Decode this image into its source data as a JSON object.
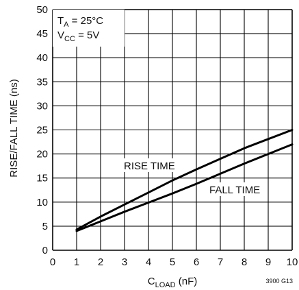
{
  "chart_data": {
    "type": "line",
    "title": "",
    "xlabel": {
      "main": "C",
      "sub": "LOAD",
      "rest": " (nF)"
    },
    "ylabel": "RISE/FALL TIME (ns)",
    "xlim": [
      0,
      10
    ],
    "ylim": [
      0,
      50
    ],
    "x_ticks": [
      "0",
      "1",
      "2",
      "3",
      "4",
      "5",
      "6",
      "7",
      "8",
      "9",
      "10"
    ],
    "y_ticks": [
      "0",
      "5",
      "10",
      "15",
      "20",
      "25",
      "30",
      "35",
      "40",
      "45",
      "50"
    ],
    "grid": true,
    "series": [
      {
        "name": "RISE TIME",
        "x": [
          1,
          2,
          3,
          4,
          5,
          6,
          7,
          8,
          9,
          10
        ],
        "y": [
          4.3,
          7.0,
          9.5,
          12.0,
          14.5,
          16.8,
          19.0,
          21.2,
          23.1,
          25.0
        ]
      },
      {
        "name": "FALL TIME",
        "x": [
          1,
          2,
          3,
          4,
          5,
          6,
          7,
          8,
          9,
          10
        ],
        "y": [
          4.0,
          6.0,
          8.0,
          9.9,
          11.8,
          13.8,
          15.9,
          18.0,
          20.0,
          22.0
        ]
      }
    ],
    "conditions": [
      {
        "main": "T",
        "sub": "A",
        "rest": " = 25°C"
      },
      {
        "main": "V",
        "sub": "CC",
        "rest": " = 5V"
      }
    ],
    "figure_id": "3900 G13"
  }
}
